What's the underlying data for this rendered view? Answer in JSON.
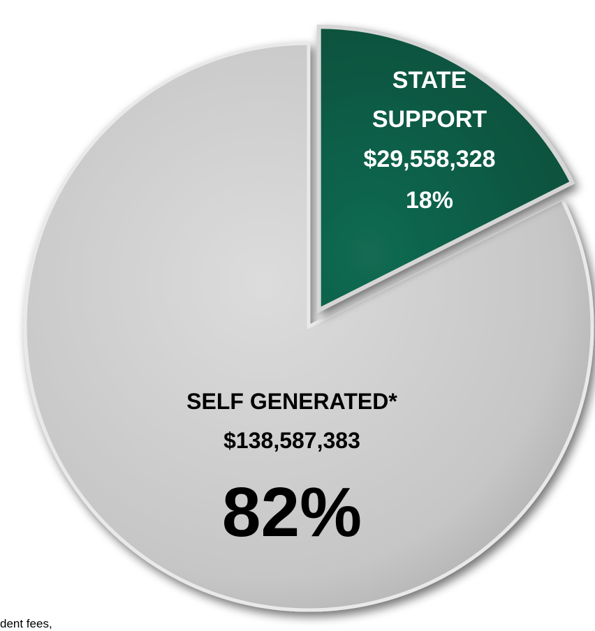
{
  "chart_data": {
    "type": "pie",
    "slices": [
      {
        "name": "STATE SUPPORT",
        "amount": "$29,558,328",
        "percent_label": "18%",
        "value": 29558328,
        "color": "#0e5e47",
        "exploded": true
      },
      {
        "name": "SELF GENERATED*",
        "amount": "$138,587,383",
        "percent_label": "82%",
        "value": 138587383,
        "color": "#c9c9c9",
        "exploded": false
      }
    ]
  },
  "footnote": "dent fees,"
}
